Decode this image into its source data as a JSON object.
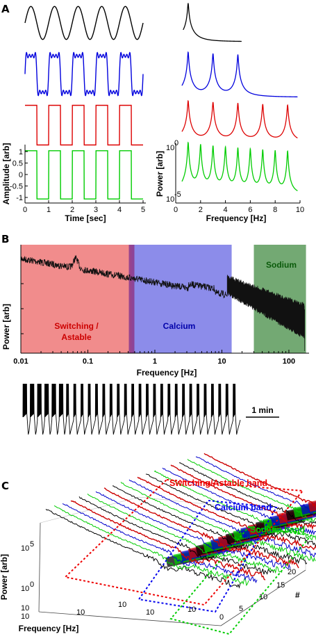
{
  "panels": {
    "A": {
      "label": "A",
      "time": {
        "xlabel": "Time [sec]",
        "ylabel": "Amplitude [arb]",
        "xticks": [
          "0",
          "1",
          "2",
          "3",
          "4",
          "5"
        ],
        "yticks": [
          "1",
          "0.5",
          "0",
          "-0.5",
          "-1"
        ],
        "xlim": [
          0,
          5
        ],
        "ylim": [
          -1,
          1
        ]
      },
      "spectrum": {
        "xlabel": "Frequency [Hz]",
        "ylabel": "Power [arb]",
        "xticks": [
          "0",
          "2",
          "4",
          "6",
          "8",
          "10"
        ],
        "xlim": [
          0,
          10
        ],
        "y_exp_top": "0",
        "y_exp_bottom": "-5"
      },
      "signals": [
        {
          "color": "#000000",
          "shape": "sine",
          "period_s": 1,
          "peaks_hz": [
            1
          ]
        },
        {
          "color": "#0000dd",
          "shape": "rounded-square",
          "period_s": 1,
          "peaks_hz": [
            1,
            3,
            5
          ]
        },
        {
          "color": "#dd0000",
          "shape": "square",
          "period_s": 1,
          "peaks_hz": [
            1,
            3,
            5,
            7,
            9
          ]
        },
        {
          "color": "#00cc00",
          "shape": "square-harmonics",
          "period_s": 1,
          "peaks_hz": [
            1,
            2,
            3,
            4,
            5,
            6,
            7,
            8,
            9
          ]
        }
      ]
    },
    "B": {
      "label": "B",
      "chart_data": {
        "type": "line",
        "xscale": "log",
        "xlim": [
          0.01,
          200
        ],
        "xticks": [
          "0.01",
          "0.1",
          "1",
          "10",
          "100"
        ],
        "xlabel": "Frequency [Hz]",
        "ylabel": "Power [arb]",
        "bands": [
          {
            "label": "Switching / Astable",
            "line1": "Switching /",
            "line2": "Astable",
            "from": 0.01,
            "to": 0.45,
            "color": "#f08080"
          },
          {
            "label": "Calcium",
            "from": 0.45,
            "to": 14,
            "color": "#8080e8"
          },
          {
            "label": "Sodium",
            "from": 30,
            "to": 180,
            "color": "#5a9a5a"
          }
        ]
      },
      "trace_scale": "1 min",
      "burst_count": 30
    },
    "C": {
      "label": "C",
      "chart_data": {
        "type": "line",
        "xscale": "log",
        "xlabel": "Frequency [Hz]",
        "ylabel": "Power [arb]",
        "zlabel": "#",
        "yticks": [
          "10",
          "10",
          "10"
        ],
        "yexps": [
          "5",
          "0",
          ""
        ],
        "xticks": [
          "10",
          "10",
          "10",
          "10",
          "10"
        ],
        "zticks": [
          "20",
          "15",
          "10",
          "5",
          "0"
        ],
        "series_count": 20,
        "series_colors": [
          "#000000",
          "#00cc00",
          "#0000cc",
          "#cc0000"
        ],
        "bands": [
          {
            "label": "Switching/Astable band",
            "color": "#ee0000"
          },
          {
            "label": "Calcium band",
            "color": "#0000ee"
          },
          {
            "label": "Sodium band",
            "color": "#00cc00"
          }
        ]
      }
    }
  }
}
